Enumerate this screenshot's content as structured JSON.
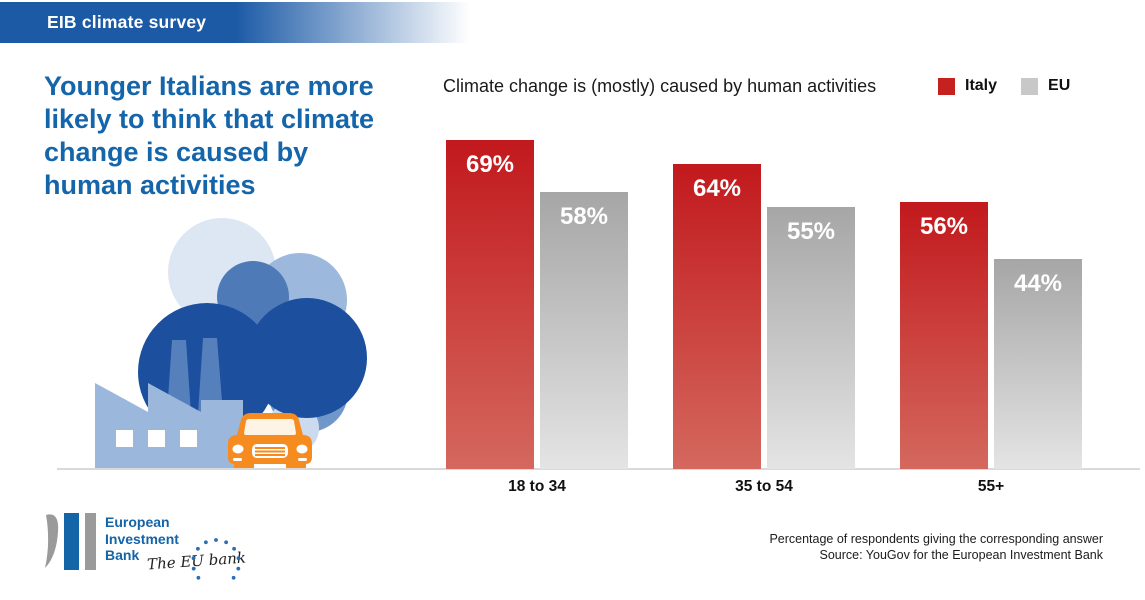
{
  "header": {
    "title": "EIB climate survey"
  },
  "headline": "Younger Italians are more likely to think that climate change is caused by human activities",
  "chart_data": {
    "type": "bar",
    "title": "Climate change is (mostly) caused by human activities",
    "categories": [
      "18 to 34",
      "35 to 54",
      "55+"
    ],
    "series": [
      {
        "name": "Italy",
        "values": [
          69,
          64,
          56
        ],
        "value_labels": [
          "69%",
          "64%",
          "56%"
        ],
        "color_top": "#c2191d",
        "color_bottom": "#d4685e",
        "legend_color": "#c5211f"
      },
      {
        "name": "EU",
        "values": [
          58,
          55,
          44
        ],
        "value_labels": [
          "58%",
          "55%",
          "44%"
        ],
        "color_top": "#a6a6a6",
        "color_bottom": "#e4e4e4",
        "legend_color": "#c8c8c8"
      }
    ],
    "unit": "%",
    "ylim": [
      0,
      100
    ],
    "xlabel": "",
    "ylabel": "",
    "grid": false,
    "legend_position": "top-right"
  },
  "footer": {
    "logo_lines": [
      "European",
      "Investment",
      "Bank"
    ],
    "tagline": "The EU bank",
    "note_line1": "Percentage of respondents giving the corresponding answer",
    "note_line2": "Source: YouGov for the European Investment Bank"
  },
  "colors": {
    "banner_blue": "#1c5aa6",
    "headline_blue": "#1565ab",
    "dark_blue": "#1c4f9e",
    "medium_blue": "#4f7ab8",
    "light_blue": "#9cb8dc",
    "pale_blue": "#dde7f3",
    "car_orange": "#f68b1f",
    "ground_gray": "#d9d9d9"
  }
}
